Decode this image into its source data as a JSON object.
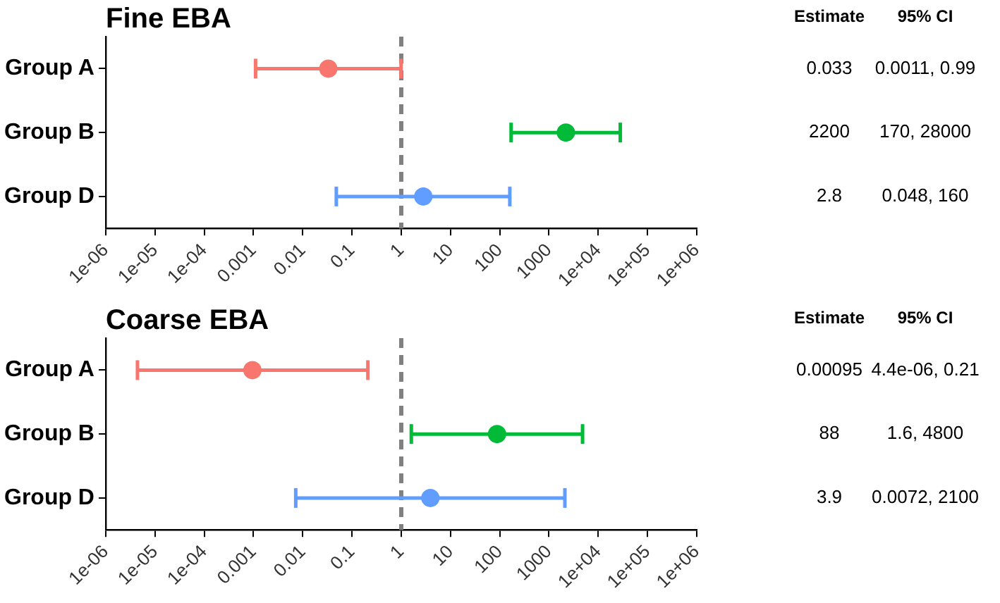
{
  "chart_data": [
    {
      "type": "scatter",
      "orientation": "horizontal",
      "title": "Fine EBA",
      "categories": [
        "Group A",
        "Group B",
        "Group D"
      ],
      "values": [
        0.033,
        2200,
        2.8
      ],
      "errors": [
        [
          0.0011,
          0.99
        ],
        [
          170,
          28000
        ],
        [
          0.048,
          160
        ]
      ],
      "colors": [
        "#f8766d",
        "#00ba38",
        "#619cff"
      ],
      "annotations": [
        "Estimate",
        "95% CI",
        "0.033",
        "0.0011, 0.99",
        "2200",
        "170, 28000",
        "2.8",
        "0.048, 160"
      ],
      "log": "x",
      "xlim": [
        1e-06,
        1000000.0
      ],
      "xticks": [
        {
          "value": 1e-06,
          "label": "1e-06"
        },
        {
          "value": 1e-05,
          "label": "1e-05"
        },
        {
          "value": 0.0001,
          "label": "1e-04"
        },
        0.001,
        0.01,
        0.1,
        1,
        10,
        100,
        1000,
        {
          "value": 10000.0,
          "label": "1e+04"
        },
        {
          "value": 100000.0,
          "label": "1e+05"
        },
        {
          "value": 1000000.0,
          "label": "1e+06"
        }
      ],
      "ref_lines": [
        {
          "axis": "x",
          "value": 1,
          "color": "#808080",
          "line_style": "dashed"
        }
      ],
      "marker": "circle",
      "grid": false,
      "legend": false
    },
    {
      "type": "scatter",
      "orientation": "horizontal",
      "title": "Coarse EBA",
      "categories": [
        "Group A",
        "Group B",
        "Group D"
      ],
      "values": [
        0.00095,
        88,
        3.9
      ],
      "errors": [
        [
          4.4e-06,
          0.21
        ],
        [
          1.6,
          4800
        ],
        [
          0.0072,
          2100
        ]
      ],
      "colors": [
        "#f8766d",
        "#00ba38",
        "#619cff"
      ],
      "annotations": [
        "Estimate",
        "95% CI",
        "0.00095",
        "4.4e-06, 0.21",
        "88",
        "1.6, 4800",
        "3.9",
        "0.0072, 2100"
      ],
      "log": "x",
      "xlim": [
        1e-06,
        1000000.0
      ],
      "xticks": [
        {
          "value": 1e-06,
          "label": "1e-06"
        },
        {
          "value": 1e-05,
          "label": "1e-05"
        },
        {
          "value": 0.0001,
          "label": "1e-04"
        },
        0.001,
        0.01,
        0.1,
        1,
        10,
        100,
        1000,
        {
          "value": 10000.0,
          "label": "1e+04"
        },
        {
          "value": 100000.0,
          "label": "1e+05"
        },
        {
          "value": 1000000.0,
          "label": "1e+06"
        }
      ],
      "ref_lines": [
        {
          "axis": "x",
          "value": 1,
          "color": "#808080",
          "line_style": "dashed"
        }
      ],
      "marker": "circle",
      "grid": false,
      "legend": false
    }
  ]
}
